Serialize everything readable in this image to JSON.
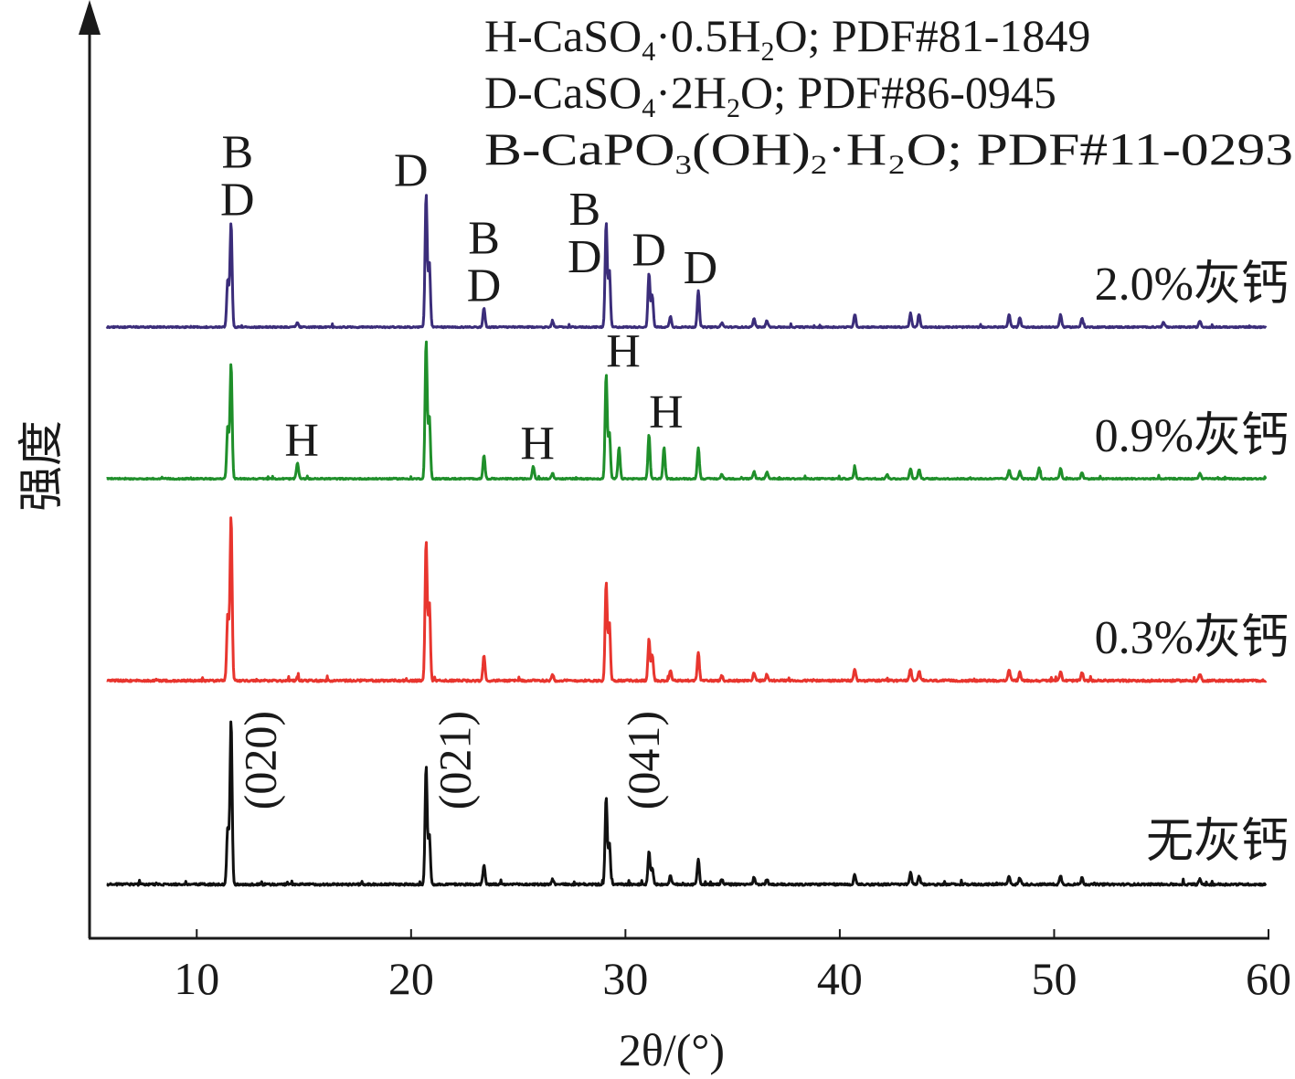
{
  "chart_data": {
    "type": "line",
    "xlabel": "2θ/(°)",
    "ylabel": "强度",
    "xlim": [
      5,
      60
    ],
    "xticks": [
      10,
      20,
      30,
      40,
      50,
      60
    ],
    "grid": false,
    "legend_lines": [
      {
        "prefix": "H-CaSO",
        "s1": "4",
        "mid": "·0.5H",
        "s2": "2",
        "suffix": "O; PDF#81-1849"
      },
      {
        "prefix": "D-CaSO",
        "s1": "4",
        "mid": "·2H",
        "s2": "2",
        "suffix": "O; PDF#86-0945"
      },
      {
        "prefix": "B-CaPO",
        "s1": "3",
        "mid": "(OH)",
        "s2": "2",
        "suffix": "·H₂O; PDF#11-0293"
      }
    ],
    "series": [
      {
        "name": "2.0%灰钙",
        "color": "#3b2d7a",
        "offset": 3,
        "scale": 0.52,
        "peaks": [
          [
            11.6,
            1.0
          ],
          [
            11.45,
            0.45
          ],
          [
            20.7,
            1.28
          ],
          [
            20.85,
            0.62
          ],
          [
            23.4,
            0.18
          ],
          [
            29.1,
            1.0
          ],
          [
            29.25,
            0.55
          ],
          [
            31.1,
            0.52
          ],
          [
            31.25,
            0.3
          ],
          [
            32.1,
            0.1
          ],
          [
            33.4,
            0.35
          ],
          [
            36.0,
            0.08
          ],
          [
            36.6,
            0.06
          ],
          [
            40.7,
            0.12
          ],
          [
            43.3,
            0.13
          ],
          [
            43.7,
            0.12
          ],
          [
            47.9,
            0.12
          ],
          [
            48.4,
            0.09
          ],
          [
            50.3,
            0.12
          ],
          [
            51.3,
            0.09
          ],
          [
            55.1,
            0.05
          ],
          [
            56.8,
            0.06
          ],
          [
            14.7,
            0.04
          ],
          [
            26.6,
            0.05
          ],
          [
            34.5,
            0.04
          ]
        ]
      },
      {
        "name": "0.9%灰钙",
        "color": "#1f8f2a",
        "offset": 2,
        "scale": 0.52,
        "peaks": [
          [
            11.6,
            1.1
          ],
          [
            11.45,
            0.5
          ],
          [
            14.7,
            0.15
          ],
          [
            20.7,
            1.32
          ],
          [
            20.85,
            0.6
          ],
          [
            23.4,
            0.22
          ],
          [
            25.7,
            0.12
          ],
          [
            29.1,
            1.0
          ],
          [
            29.25,
            0.45
          ],
          [
            29.7,
            0.3
          ],
          [
            31.1,
            0.42
          ],
          [
            31.8,
            0.3
          ],
          [
            33.4,
            0.3
          ],
          [
            36.0,
            0.07
          ],
          [
            36.6,
            0.06
          ],
          [
            40.7,
            0.1
          ],
          [
            43.3,
            0.1
          ],
          [
            43.7,
            0.09
          ],
          [
            47.9,
            0.08
          ],
          [
            48.4,
            0.07
          ],
          [
            49.3,
            0.1
          ],
          [
            50.3,
            0.1
          ],
          [
            51.3,
            0.06
          ],
          [
            56.8,
            0.05
          ],
          [
            26.6,
            0.05
          ],
          [
            34.5,
            0.04
          ],
          [
            42.2,
            0.04
          ]
        ]
      },
      {
        "name": "0.3%灰钙",
        "color": "#e8352e",
        "offset": 1,
        "scale": 0.82,
        "peaks": [
          [
            11.6,
            1.0
          ],
          [
            11.45,
            0.4
          ],
          [
            20.7,
            0.85
          ],
          [
            20.85,
            0.48
          ],
          [
            23.4,
            0.15
          ],
          [
            26.6,
            0.04
          ],
          [
            29.1,
            0.6
          ],
          [
            29.25,
            0.35
          ],
          [
            31.1,
            0.25
          ],
          [
            31.25,
            0.15
          ],
          [
            32.1,
            0.06
          ],
          [
            33.4,
            0.17
          ],
          [
            36.0,
            0.05
          ],
          [
            36.6,
            0.04
          ],
          [
            40.7,
            0.07
          ],
          [
            43.3,
            0.07
          ],
          [
            43.7,
            0.06
          ],
          [
            47.9,
            0.07
          ],
          [
            48.4,
            0.05
          ],
          [
            50.3,
            0.06
          ],
          [
            51.3,
            0.05
          ],
          [
            56.8,
            0.04
          ],
          [
            14.7,
            0.02
          ],
          [
            34.5,
            0.03
          ]
        ]
      },
      {
        "name": "无灰钙",
        "color": "#111111",
        "offset": 0,
        "scale": 0.82,
        "peaks": [
          [
            11.6,
            1.0
          ],
          [
            11.45,
            0.35
          ],
          [
            20.7,
            0.72
          ],
          [
            20.85,
            0.3
          ],
          [
            23.4,
            0.12
          ],
          [
            26.6,
            0.03
          ],
          [
            29.1,
            0.53
          ],
          [
            29.25,
            0.25
          ],
          [
            31.1,
            0.2
          ],
          [
            31.25,
            0.1
          ],
          [
            32.1,
            0.05
          ],
          [
            33.4,
            0.15
          ],
          [
            36.0,
            0.04
          ],
          [
            36.6,
            0.03
          ],
          [
            40.7,
            0.06
          ],
          [
            43.3,
            0.07
          ],
          [
            43.7,
            0.05
          ],
          [
            47.9,
            0.05
          ],
          [
            48.4,
            0.04
          ],
          [
            50.3,
            0.05
          ],
          [
            51.3,
            0.04
          ],
          [
            56.8,
            0.03
          ],
          [
            34.5,
            0.03
          ]
        ]
      }
    ],
    "annotations": [
      {
        "text": "B",
        "x": 11.9,
        "series": "2.0%灰钙",
        "level": 2
      },
      {
        "text": "D",
        "x": 11.9,
        "series": "2.0%灰钙",
        "level": 1
      },
      {
        "text": "D",
        "x": 20.0,
        "series": "2.0%灰钙",
        "level": 1
      },
      {
        "text": "B",
        "x": 23.4,
        "series": "2.0%灰钙",
        "level": 2
      },
      {
        "text": "D",
        "x": 23.4,
        "series": "2.0%灰钙",
        "level": 1
      },
      {
        "text": "B",
        "x": 28.1,
        "series": "2.0%灰钙",
        "level": 3
      },
      {
        "text": "D",
        "x": 28.1,
        "series": "2.0%灰钙",
        "level": 2
      },
      {
        "text": "D",
        "x": 31.1,
        "series": "2.0%灰钙",
        "level": 1
      },
      {
        "text": "D",
        "x": 33.5,
        "series": "2.0%灰钙",
        "level": 1
      },
      {
        "text": "H",
        "x": 14.9,
        "series": "0.9%灰钙",
        "level": 1
      },
      {
        "text": "H",
        "x": 25.9,
        "series": "0.9%灰钙",
        "level": 1
      },
      {
        "text": "H",
        "x": 29.9,
        "series": "0.9%灰钙",
        "level": 1
      },
      {
        "text": "H",
        "x": 31.9,
        "series": "0.9%灰钙",
        "level": 1
      },
      {
        "text": "(020)",
        "x": 12.9,
        "series": "无灰钙",
        "rotated": true
      },
      {
        "text": "(021)",
        "x": 22.0,
        "series": "无灰钙",
        "rotated": true
      },
      {
        "text": "(041)",
        "x": 30.8,
        "series": "无灰钙",
        "rotated": true
      }
    ]
  }
}
